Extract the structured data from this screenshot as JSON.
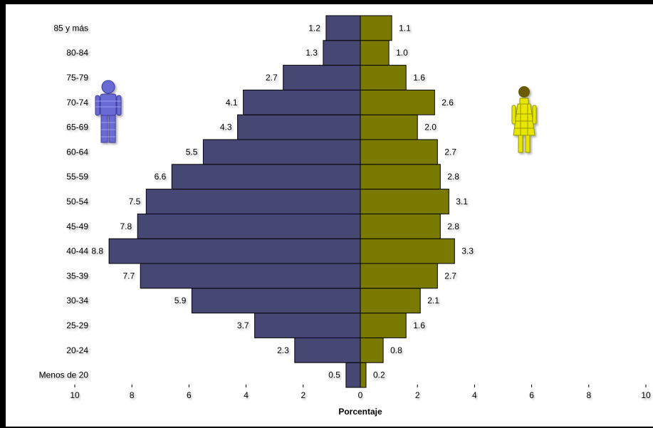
{
  "chart_data": {
    "type": "bar",
    "categories": [
      "Menos de 20",
      "20-24",
      "25-29",
      "30-34",
      "35-39",
      "40-44",
      "45-49",
      "50-54",
      "55-59",
      "60-64",
      "65-69",
      "70-74",
      "75-79",
      "80-84",
      "85 y más"
    ],
    "series": [
      {
        "values": [
          0.5,
          2.3,
          3.7,
          5.9,
          7.7,
          8.8,
          7.8,
          7.5,
          6.6,
          5.5,
          4.3,
          4.1,
          2.7,
          1.3,
          1.2
        ],
        "color": "#474773"
      },
      {
        "values": [
          0.2,
          0.8,
          1.6,
          2.1,
          2.7,
          3.3,
          2.8,
          3.1,
          2.8,
          2.7,
          2.0,
          2.6,
          1.6,
          1.0,
          1.1
        ],
        "color": "#7a7a00"
      }
    ],
    "xlabel": "Porcentaje",
    "xlim": [
      -10,
      10
    ],
    "xticks": [
      "10",
      "8",
      "6",
      "4",
      "2",
      "0",
      "2",
      "4",
      "6",
      "8",
      "10"
    ],
    "grid": false,
    "icons": [
      "male-figure-icon",
      "female-figure-icon"
    ]
  }
}
